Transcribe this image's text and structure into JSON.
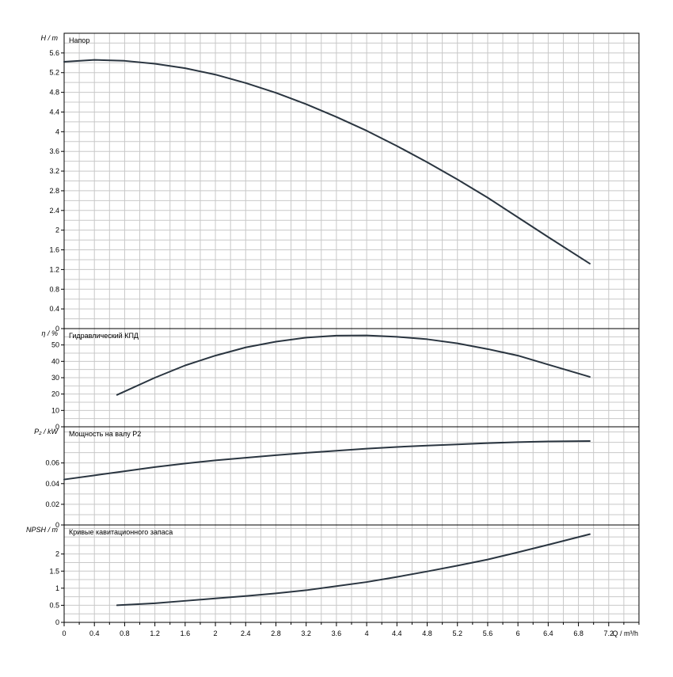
{
  "x_axis": {
    "label": "Q / m³/h",
    "min": 0,
    "max": 7.6,
    "major_ticks": [
      0,
      0.4,
      0.8,
      1.2,
      1.6,
      2,
      2.4,
      2.8,
      3.2,
      3.6,
      4,
      4.4,
      4.8,
      5.2,
      5.6,
      6,
      6.4,
      6.8,
      7.2
    ],
    "grid_step": 0.2
  },
  "chart_data": [
    {
      "type": "line",
      "title": "Напор",
      "ylabel": "H / m",
      "ylim": [
        0,
        6
      ],
      "yticks": [
        0,
        0.4,
        0.8,
        1.2,
        1.6,
        2,
        2.4,
        2.8,
        3.2,
        3.6,
        4,
        4.4,
        4.8,
        5.2,
        5.6
      ],
      "grid_y_step": 0.2,
      "grid": true,
      "x": [
        0,
        0.4,
        0.8,
        1.2,
        1.6,
        2,
        2.4,
        2.8,
        3.2,
        3.6,
        4,
        4.4,
        4.8,
        5.2,
        5.6,
        6,
        6.4,
        6.95
      ],
      "y": [
        5.42,
        5.46,
        5.44,
        5.38,
        5.29,
        5.16,
        4.99,
        4.79,
        4.56,
        4.3,
        4.02,
        3.71,
        3.38,
        3.03,
        2.66,
        2.26,
        1.86,
        1.32
      ]
    },
    {
      "type": "line",
      "title": "Гидравлический КПД",
      "ylabel": "η / %",
      "ylim": [
        0,
        60
      ],
      "yticks": [
        0,
        10,
        20,
        30,
        40,
        50
      ],
      "grid_y_step": 5,
      "grid": true,
      "x": [
        0.7,
        1.2,
        1.6,
        2,
        2.4,
        2.8,
        3.2,
        3.6,
        4,
        4.4,
        4.8,
        5.2,
        5.6,
        6,
        6.4,
        6.95
      ],
      "y": [
        19.5,
        30,
        37.5,
        43.5,
        48.5,
        52,
        54.5,
        55.7,
        55.8,
        55,
        53.5,
        51,
        47.5,
        43.5,
        38,
        30.5
      ]
    },
    {
      "type": "line",
      "title": "Мощность на валу P2",
      "ylabel": "P₂ / kW",
      "ylim": [
        0,
        0.095
      ],
      "yticks": [
        0,
        0.02,
        0.04,
        0.06
      ],
      "grid_y_step": 0.01,
      "grid": true,
      "x": [
        0,
        0.4,
        0.8,
        1.2,
        1.6,
        2,
        2.4,
        2.8,
        3.2,
        3.6,
        4,
        4.4,
        4.8,
        5.2,
        5.6,
        6,
        6.4,
        6.95
      ],
      "y": [
        0.044,
        0.048,
        0.052,
        0.056,
        0.0595,
        0.0625,
        0.065,
        0.0675,
        0.0698,
        0.0718,
        0.0738,
        0.0755,
        0.0768,
        0.078,
        0.0792,
        0.0802,
        0.0808,
        0.0812
      ]
    },
    {
      "type": "line",
      "title": "Кривые кавитационного запаса",
      "ylabel": "NPSH / m",
      "ylim": [
        0,
        2.85
      ],
      "yticks": [
        0,
        0.5,
        1,
        1.5,
        2
      ],
      "grid_y_step": 0.25,
      "grid": true,
      "x": [
        0.7,
        1.2,
        1.6,
        2,
        2.4,
        2.8,
        3.2,
        3.6,
        4,
        4.4,
        4.8,
        5.2,
        5.6,
        6,
        6.4,
        6.95
      ],
      "y": [
        0.5,
        0.56,
        0.63,
        0.7,
        0.77,
        0.85,
        0.94,
        1.06,
        1.18,
        1.33,
        1.49,
        1.66,
        1.84,
        2.05,
        2.27,
        2.58
      ]
    }
  ]
}
